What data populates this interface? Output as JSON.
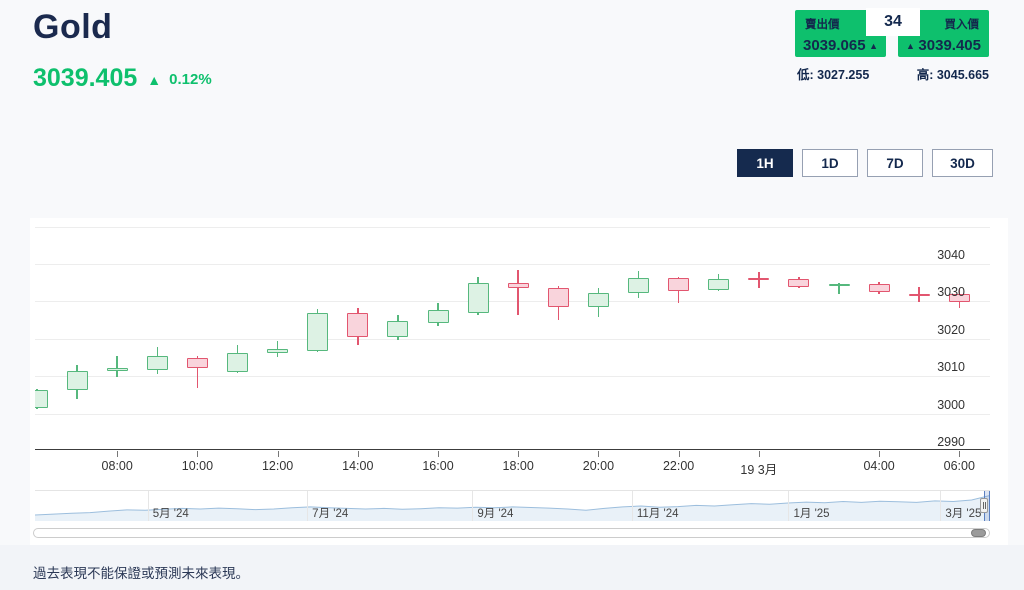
{
  "header": {
    "title": "Gold",
    "price": "3039.405",
    "arrow": "▲",
    "change": "0.12%"
  },
  "quote": {
    "sell_label": "賣出價",
    "sell_price": "3039.065",
    "sell_arrow": "▲",
    "spread": "34",
    "buy_label": "買入價",
    "buy_price": "3039.405",
    "buy_arrow": "▲",
    "low_label": "低: 3027.255",
    "high_label": "高: 3045.665"
  },
  "ranges": [
    {
      "label": "1H",
      "active": true
    },
    {
      "label": "1D",
      "active": false
    },
    {
      "label": "7D",
      "active": false
    },
    {
      "label": "30D",
      "active": false
    }
  ],
  "chart_data": {
    "type": "candlestick",
    "symbol": "Gold",
    "interval": "1H",
    "y_axis": {
      "gridlines": [
        {
          "v": 3050,
          "label": ""
        },
        {
          "v": 3040,
          "label": "3040"
        },
        {
          "v": 3030,
          "label": "3030"
        },
        {
          "v": 3020,
          "label": "3020"
        },
        {
          "v": 3010,
          "label": "3010"
        },
        {
          "v": 3000,
          "label": "3000"
        },
        {
          "v": 2990,
          "label": "2990"
        }
      ],
      "range": [
        2990,
        3050
      ]
    },
    "candles": [
      {
        "t": "06:00",
        "o": 3001.5,
        "h": 3006.6,
        "l": 3001.2,
        "c": 3006.3
      },
      {
        "t": "07:00",
        "o": 3006.3,
        "h": 3012.9,
        "l": 3003.8,
        "c": 3011.4
      },
      {
        "t": "08:00",
        "o": 3011.4,
        "h": 3015.4,
        "l": 3009.8,
        "c": 3012.2
      },
      {
        "t": "09:00",
        "o": 3011.6,
        "h": 3017.8,
        "l": 3010.6,
        "c": 3015.4
      },
      {
        "t": "10:00",
        "o": 3015.0,
        "h": 3015.3,
        "l": 3006.8,
        "c": 3012.1
      },
      {
        "t": "11:00",
        "o": 3011.2,
        "h": 3018.4,
        "l": 3010.8,
        "c": 3016.1
      },
      {
        "t": "12:00",
        "o": 3016.1,
        "h": 3019.3,
        "l": 3015.2,
        "c": 3017.2
      },
      {
        "t": "13:00",
        "o": 3016.7,
        "h": 3027.9,
        "l": 3016.4,
        "c": 3027.0
      },
      {
        "t": "14:00",
        "o": 3027.0,
        "h": 3028.3,
        "l": 3018.3,
        "c": 3020.4
      },
      {
        "t": "15:00",
        "o": 3020.4,
        "h": 3026.4,
        "l": 3019.7,
        "c": 3024.8
      },
      {
        "t": "16:00",
        "o": 3024.1,
        "h": 3029.6,
        "l": 3023.5,
        "c": 3027.6
      },
      {
        "t": "17:00",
        "o": 3026.8,
        "h": 3036.6,
        "l": 3026.4,
        "c": 3034.9
      },
      {
        "t": "18:00",
        "o": 3034.9,
        "h": 3038.4,
        "l": 3026.4,
        "c": 3033.5
      },
      {
        "t": "19:00",
        "o": 3033.7,
        "h": 3034.0,
        "l": 3025.0,
        "c": 3028.6
      },
      {
        "t": "20:00",
        "o": 3028.6,
        "h": 3033.6,
        "l": 3025.9,
        "c": 3032.2
      },
      {
        "t": "21:00",
        "o": 3032.2,
        "h": 3038.1,
        "l": 3031.0,
        "c": 3036.3
      },
      {
        "t": "22:00",
        "o": 3036.3,
        "h": 3036.6,
        "l": 3029.5,
        "c": 3032.8
      },
      {
        "t": "23:00",
        "o": 3033.0,
        "h": 3037.2,
        "l": 3032.8,
        "c": 3036.1
      },
      {
        "t": "00:00",
        "o": 3036.2,
        "h": 3037.8,
        "l": 3033.5,
        "c": 3035.8
      },
      {
        "t": "02:00",
        "o": 3036.0,
        "h": 3036.5,
        "l": 3033.5,
        "c": 3033.9
      },
      {
        "t": "03:00",
        "o": 3034.1,
        "h": 3034.9,
        "l": 3031.9,
        "c": 3034.6
      },
      {
        "t": "04:00",
        "o": 3034.6,
        "h": 3035.3,
        "l": 3032.0,
        "c": 3032.4
      },
      {
        "t": "05:00",
        "o": 3032.0,
        "h": 3033.9,
        "l": 3029.9,
        "c": 3031.8
      },
      {
        "t": "06:00",
        "o": 3031.9,
        "h": 3033.2,
        "l": 3028.3,
        "c": 3029.9
      }
    ],
    "x_ticks": [
      {
        "label": "08:00",
        "i": 2
      },
      {
        "label": "10:00",
        "i": 4
      },
      {
        "label": "12:00",
        "i": 6
      },
      {
        "label": "14:00",
        "i": 8
      },
      {
        "label": "16:00",
        "i": 10
      },
      {
        "label": "18:00",
        "i": 12
      },
      {
        "label": "20:00",
        "i": 14
      },
      {
        "label": "22:00",
        "i": 16
      },
      {
        "label": "19 3月",
        "i": 18
      },
      {
        "label": "04:00",
        "i": 21
      },
      {
        "label": "06:00",
        "i": 23
      }
    ],
    "navigator": {
      "type": "area",
      "labels": [
        {
          "text": "5月 '24",
          "f": 0.118
        },
        {
          "text": "7月 '24",
          "f": 0.285
        },
        {
          "text": "9月 '24",
          "f": 0.458
        },
        {
          "text": "11月 '24",
          "f": 0.625
        },
        {
          "text": "1月 '25",
          "f": 0.789
        },
        {
          "text": "3月 '25",
          "f": 0.948
        }
      ],
      "points": [
        0.2,
        0.23,
        0.26,
        0.28,
        0.33,
        0.37,
        0.36,
        0.39,
        0.42,
        0.4,
        0.43,
        0.41,
        0.38,
        0.4,
        0.44,
        0.47,
        0.44,
        0.42,
        0.4,
        0.42,
        0.39,
        0.41,
        0.44,
        0.43,
        0.46,
        0.44,
        0.47,
        0.45,
        0.43,
        0.4,
        0.36,
        0.42,
        0.47,
        0.5,
        0.46,
        0.48,
        0.52,
        0.5,
        0.54,
        0.58,
        0.56,
        0.6,
        0.63,
        0.61,
        0.65,
        0.62,
        0.66,
        0.64,
        0.62,
        0.67,
        0.65,
        0.7,
        0.85
      ],
      "selected_range_fraction": [
        0.994,
        1.0
      ]
    }
  },
  "footer": {
    "disclaimer": "過去表現不能保證或預測未來表現。"
  },
  "colors": {
    "accent_green": "#0ec06d",
    "navy": "#152a4e",
    "up_fill": "#ddf2e4",
    "up_border": "#56b87d",
    "down_fill": "#f9d4dc",
    "down_border": "#e2566f",
    "nav_line": "#9cbedd",
    "nav_fill": "rgba(156,190,221,0.22)",
    "mask_fill": "rgba(102,133,194,0.22)"
  }
}
